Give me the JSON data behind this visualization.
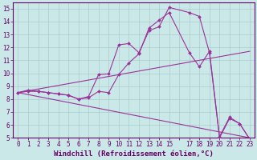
{
  "xlabel": "Windchill (Refroidissement éolien,°C)",
  "background_color": "#cbe8e8",
  "grid_color": "#aacccc",
  "line_color": "#993399",
  "xmin": -0.5,
  "xmax": 23.5,
  "ymin": 5,
  "ymax": 15.5,
  "yticks": [
    5,
    6,
    7,
    8,
    9,
    10,
    11,
    12,
    13,
    14,
    15
  ],
  "line1_x": [
    0,
    1,
    2,
    3,
    4,
    5,
    6,
    7,
    8,
    9,
    10,
    11,
    12,
    13,
    14,
    15,
    17,
    18,
    19,
    20,
    21,
    22,
    23
  ],
  "line1_y": [
    8.5,
    8.7,
    8.6,
    8.5,
    8.4,
    8.3,
    8.0,
    8.2,
    9.9,
    9.95,
    12.2,
    12.3,
    11.6,
    13.3,
    13.6,
    15.1,
    14.7,
    14.4,
    11.6,
    5.0,
    6.5,
    6.1,
    4.9
  ],
  "line2_x": [
    0,
    1,
    2,
    3,
    4,
    5,
    6,
    7,
    8,
    9,
    10,
    11,
    12,
    13,
    14,
    15,
    17,
    18,
    19,
    20,
    21,
    22,
    23
  ],
  "line2_y": [
    8.5,
    8.6,
    8.6,
    8.5,
    8.4,
    8.3,
    8.0,
    8.1,
    8.6,
    8.5,
    9.9,
    10.8,
    11.5,
    13.5,
    14.1,
    14.7,
    11.6,
    10.5,
    11.7,
    5.1,
    6.6,
    6.1,
    4.9
  ],
  "line3_x": [
    0,
    23
  ],
  "line3_y": [
    8.5,
    5.0
  ],
  "line4_x": [
    0,
    23
  ],
  "line4_y": [
    8.5,
    11.7
  ],
  "tick_fontsize": 5.5,
  "label_fontsize": 6.5
}
